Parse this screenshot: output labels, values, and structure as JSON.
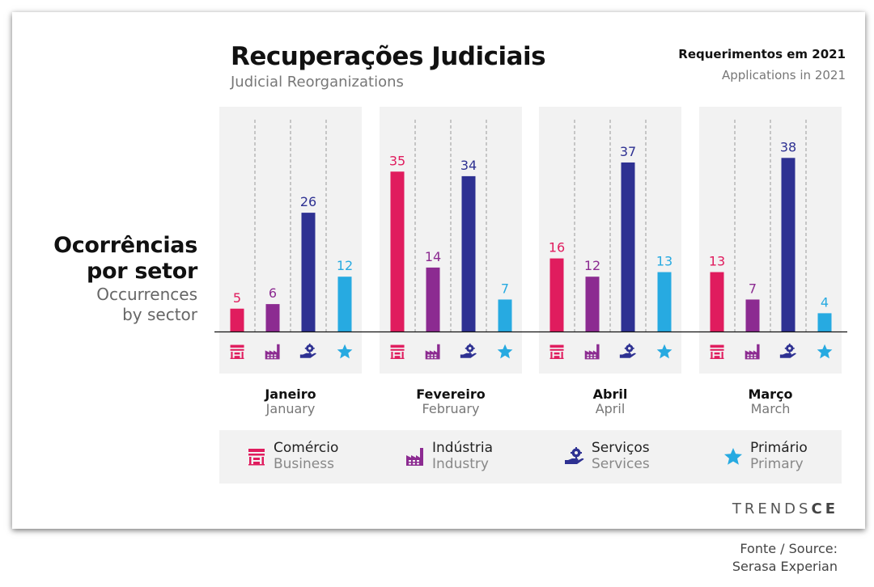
{
  "title": "Recuperações Judiciais",
  "subtitle": "Judicial Reorganizations",
  "header_right": {
    "pt": "Requerimentos em 2021",
    "en": "Applications in 2021"
  },
  "y_label": {
    "pt_line1": "Ocorrências",
    "pt_line2": "por setor",
    "en_line1": "Occurrences",
    "en_line2": "by sector"
  },
  "chart_data": {
    "type": "bar",
    "categories": [
      {
        "pt": "Janeiro",
        "en": "January"
      },
      {
        "pt": "Fevereiro",
        "en": "February"
      },
      {
        "pt": "Abril",
        "en": "April"
      },
      {
        "pt": "Março",
        "en": "March"
      }
    ],
    "series": [
      {
        "name": "Comércio",
        "name_en": "Business",
        "color": "#e01c5e",
        "icon": "store-icon",
        "values": [
          5,
          35,
          16,
          13
        ]
      },
      {
        "name": "Indústria",
        "name_en": "Industry",
        "color": "#8c2b91",
        "icon": "factory-icon",
        "values": [
          6,
          14,
          12,
          7
        ]
      },
      {
        "name": "Serviços",
        "name_en": "Services",
        "color": "#2e3192",
        "icon": "service-hand-icon",
        "values": [
          26,
          34,
          37,
          38
        ]
      },
      {
        "name": "Primário",
        "name_en": "Primary",
        "color": "#27aae1",
        "icon": "star-icon",
        "values": [
          12,
          7,
          13,
          4
        ]
      }
    ]
  },
  "brand": {
    "part1": "TRENDS",
    "part2": "CE"
  },
  "source": {
    "line1": "Fonte / Source:",
    "line2": "Serasa Experian"
  }
}
